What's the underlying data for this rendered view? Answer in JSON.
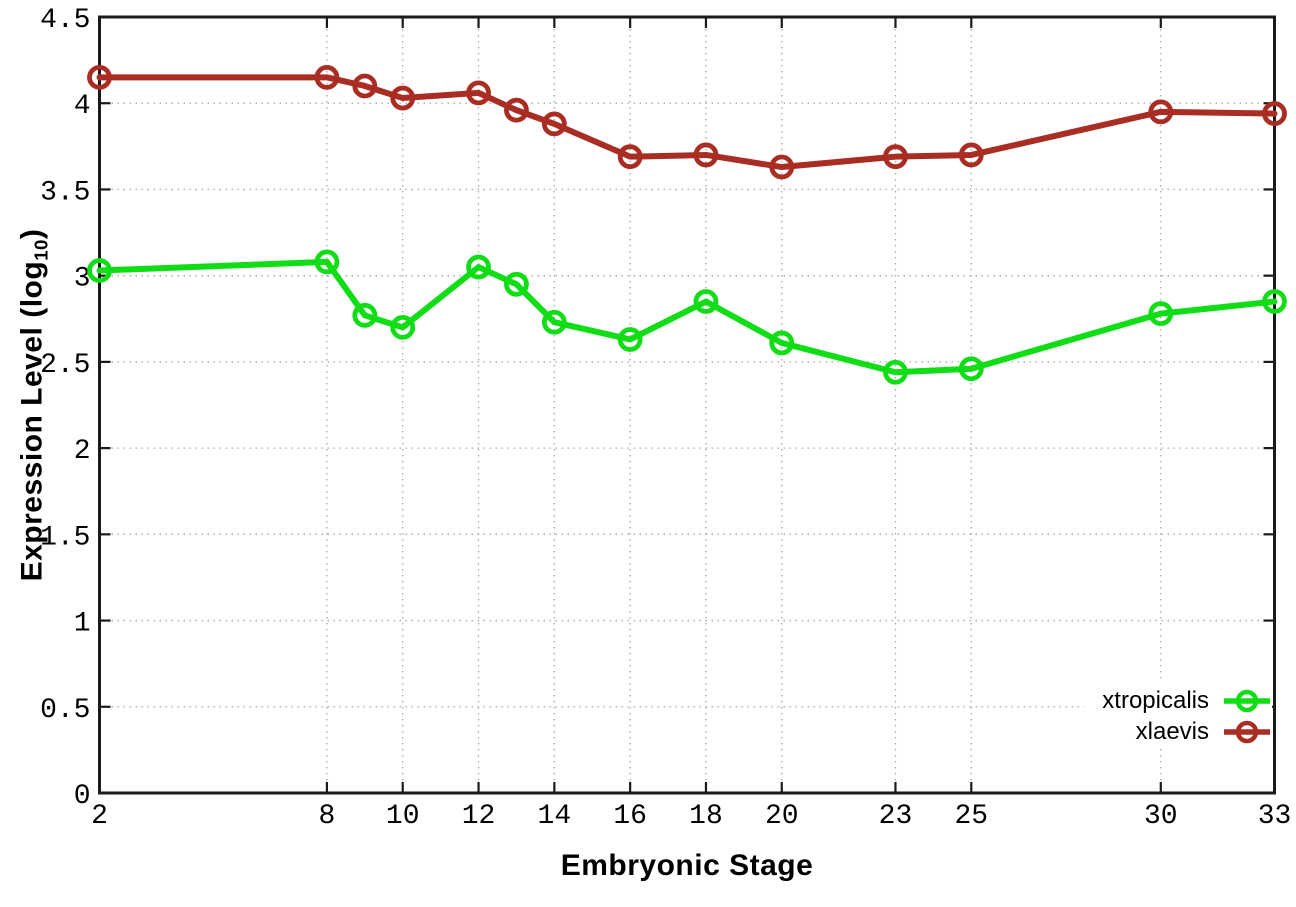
{
  "chart_data": {
    "type": "line",
    "title": "",
    "xlabel": "Embryonic Stage",
    "ylabel": {
      "prefix": "Expression Level (log",
      "sub": "10",
      "suffix": ")"
    },
    "xlim": [
      2,
      33
    ],
    "ylim": [
      0,
      4.5
    ],
    "grid": true,
    "legend_position": "inside-bottom-right",
    "x": [
      2,
      8,
      9,
      10,
      12,
      13,
      14,
      16,
      18,
      20,
      23,
      25,
      30,
      33
    ],
    "xticks": [
      2,
      8,
      10,
      12,
      14,
      16,
      18,
      20,
      23,
      25,
      30,
      33
    ],
    "yticks": [
      0,
      0.5,
      1,
      1.5,
      2,
      2.5,
      3,
      3.5,
      4,
      4.5
    ],
    "series": [
      {
        "name": "xtropicalis",
        "color": "#10dd16",
        "marker": "open-circle",
        "values": [
          3.03,
          3.08,
          2.77,
          2.7,
          3.05,
          2.95,
          2.73,
          2.63,
          2.85,
          2.61,
          2.44,
          2.46,
          2.78,
          2.85
        ]
      },
      {
        "name": "xlaevis",
        "color": "#a92d23",
        "marker": "open-circle",
        "values": [
          4.15,
          4.15,
          4.1,
          4.03,
          4.06,
          3.96,
          3.88,
          3.69,
          3.7,
          3.63,
          3.69,
          3.7,
          3.95,
          3.94
        ]
      }
    ],
    "style": {
      "border_color": "#1a1a1a",
      "grid_color": "#a8a8a8",
      "tick_label_color": "#000000",
      "background": "#ffffff"
    }
  }
}
